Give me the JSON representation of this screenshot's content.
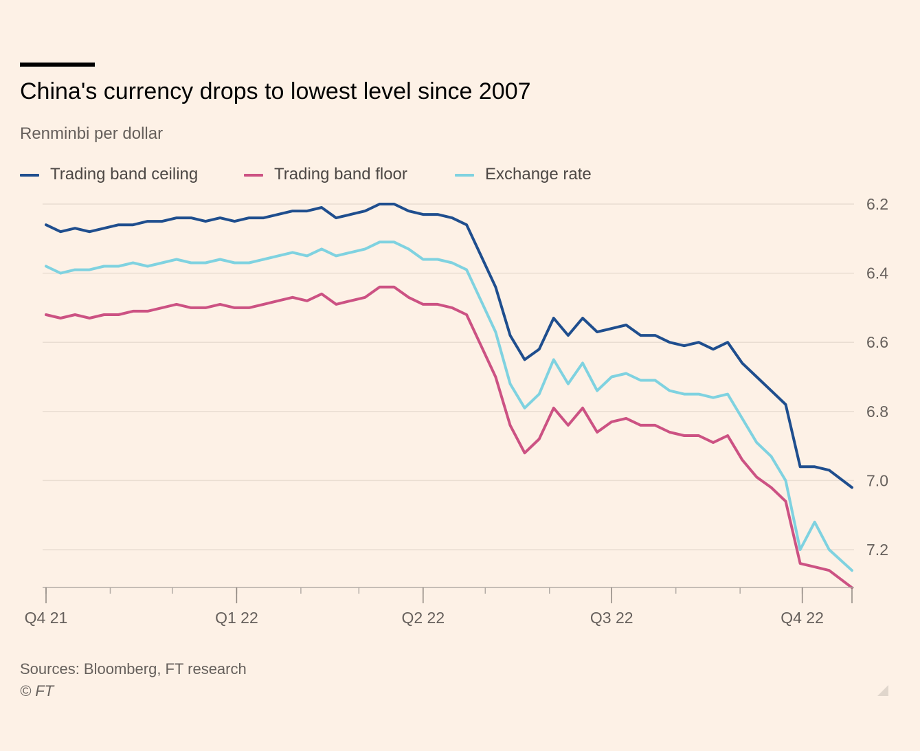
{
  "header": {
    "title": "China's currency drops to lowest level since 2007",
    "subtitle": "Renminbi per dollar"
  },
  "footer": {
    "source": "Sources: Bloomberg, FT research",
    "copyright": "© FT"
  },
  "chart_data": {
    "type": "line",
    "title": "China's currency drops to lowest level since 2007",
    "subtitle": "Renminbi per dollar",
    "xlabel": "",
    "ylabel": "",
    "y_axis_inverted": true,
    "y_axis_position": "right",
    "ylim": [
      6.2,
      7.31
    ],
    "y_ticks": [
      "6.2",
      "6.4",
      "6.6",
      "6.8",
      "7.0",
      "7.2"
    ],
    "xlim": [
      "2021-10-01",
      "2022-10-25"
    ],
    "x_ticks": [
      {
        "label": "Q4 21",
        "date": "2021-10-01"
      },
      {
        "label": "Q1 22",
        "date": "2022-01-01"
      },
      {
        "label": "Q2 22",
        "date": "2022-04-01"
      },
      {
        "label": "Q3 22",
        "date": "2022-07-01"
      },
      {
        "label": "Q4 22",
        "date": "2022-10-01"
      }
    ],
    "grid": true,
    "legend_position": "top-left",
    "series": [
      {
        "name": "Trading band ceiling",
        "color": "#1f4e8e",
        "points": [
          [
            "2021-10-01",
            6.26
          ],
          [
            "2021-10-08",
            6.28
          ],
          [
            "2021-10-15",
            6.27
          ],
          [
            "2021-10-22",
            6.28
          ],
          [
            "2021-10-29",
            6.27
          ],
          [
            "2021-11-05",
            6.26
          ],
          [
            "2021-11-12",
            6.26
          ],
          [
            "2021-11-19",
            6.25
          ],
          [
            "2021-11-26",
            6.25
          ],
          [
            "2021-12-03",
            6.24
          ],
          [
            "2021-12-10",
            6.24
          ],
          [
            "2021-12-17",
            6.25
          ],
          [
            "2021-12-24",
            6.24
          ],
          [
            "2021-12-31",
            6.25
          ],
          [
            "2022-01-07",
            6.24
          ],
          [
            "2022-01-14",
            6.24
          ],
          [
            "2022-01-21",
            6.23
          ],
          [
            "2022-01-28",
            6.22
          ],
          [
            "2022-02-04",
            6.22
          ],
          [
            "2022-02-11",
            6.21
          ],
          [
            "2022-02-18",
            6.24
          ],
          [
            "2022-02-25",
            6.23
          ],
          [
            "2022-03-04",
            6.22
          ],
          [
            "2022-03-11",
            6.2
          ],
          [
            "2022-03-18",
            6.2
          ],
          [
            "2022-03-25",
            6.22
          ],
          [
            "2022-04-01",
            6.23
          ],
          [
            "2022-04-08",
            6.23
          ],
          [
            "2022-04-15",
            6.24
          ],
          [
            "2022-04-22",
            6.26
          ],
          [
            "2022-04-29",
            6.35
          ],
          [
            "2022-05-06",
            6.44
          ],
          [
            "2022-05-13",
            6.58
          ],
          [
            "2022-05-20",
            6.65
          ],
          [
            "2022-05-27",
            6.62
          ],
          [
            "2022-06-03",
            6.53
          ],
          [
            "2022-06-10",
            6.58
          ],
          [
            "2022-06-17",
            6.53
          ],
          [
            "2022-06-24",
            6.57
          ],
          [
            "2022-07-01",
            6.56
          ],
          [
            "2022-07-08",
            6.55
          ],
          [
            "2022-07-15",
            6.58
          ],
          [
            "2022-07-22",
            6.58
          ],
          [
            "2022-07-29",
            6.6
          ],
          [
            "2022-08-05",
            6.61
          ],
          [
            "2022-08-12",
            6.6
          ],
          [
            "2022-08-19",
            6.62
          ],
          [
            "2022-08-26",
            6.6
          ],
          [
            "2022-09-02",
            6.66
          ],
          [
            "2022-09-09",
            6.7
          ],
          [
            "2022-09-16",
            6.74
          ],
          [
            "2022-09-23",
            6.78
          ],
          [
            "2022-09-30",
            6.96
          ],
          [
            "2022-10-07",
            6.96
          ],
          [
            "2022-10-14",
            6.97
          ],
          [
            "2022-10-25",
            7.02
          ]
        ]
      },
      {
        "name": "Trading band floor",
        "color": "#cc5283",
        "points": [
          [
            "2021-10-01",
            6.52
          ],
          [
            "2021-10-08",
            6.53
          ],
          [
            "2021-10-15",
            6.52
          ],
          [
            "2021-10-22",
            6.53
          ],
          [
            "2021-10-29",
            6.52
          ],
          [
            "2021-11-05",
            6.52
          ],
          [
            "2021-11-12",
            6.51
          ],
          [
            "2021-11-19",
            6.51
          ],
          [
            "2021-11-26",
            6.5
          ],
          [
            "2021-12-03",
            6.49
          ],
          [
            "2021-12-10",
            6.5
          ],
          [
            "2021-12-17",
            6.5
          ],
          [
            "2021-12-24",
            6.49
          ],
          [
            "2021-12-31",
            6.5
          ],
          [
            "2022-01-07",
            6.5
          ],
          [
            "2022-01-14",
            6.49
          ],
          [
            "2022-01-21",
            6.48
          ],
          [
            "2022-01-28",
            6.47
          ],
          [
            "2022-02-04",
            6.48
          ],
          [
            "2022-02-11",
            6.46
          ],
          [
            "2022-02-18",
            6.49
          ],
          [
            "2022-02-25",
            6.48
          ],
          [
            "2022-03-04",
            6.47
          ],
          [
            "2022-03-11",
            6.44
          ],
          [
            "2022-03-18",
            6.44
          ],
          [
            "2022-03-25",
            6.47
          ],
          [
            "2022-04-01",
            6.49
          ],
          [
            "2022-04-08",
            6.49
          ],
          [
            "2022-04-15",
            6.5
          ],
          [
            "2022-04-22",
            6.52
          ],
          [
            "2022-04-29",
            6.61
          ],
          [
            "2022-05-06",
            6.7
          ],
          [
            "2022-05-13",
            6.84
          ],
          [
            "2022-05-20",
            6.92
          ],
          [
            "2022-05-27",
            6.88
          ],
          [
            "2022-06-03",
            6.79
          ],
          [
            "2022-06-10",
            6.84
          ],
          [
            "2022-06-17",
            6.79
          ],
          [
            "2022-06-24",
            6.86
          ],
          [
            "2022-07-01",
            6.83
          ],
          [
            "2022-07-08",
            6.82
          ],
          [
            "2022-07-15",
            6.84
          ],
          [
            "2022-07-22",
            6.84
          ],
          [
            "2022-07-29",
            6.86
          ],
          [
            "2022-08-05",
            6.87
          ],
          [
            "2022-08-12",
            6.87
          ],
          [
            "2022-08-19",
            6.89
          ],
          [
            "2022-08-26",
            6.87
          ],
          [
            "2022-09-02",
            6.94
          ],
          [
            "2022-09-09",
            6.99
          ],
          [
            "2022-09-16",
            7.02
          ],
          [
            "2022-09-23",
            7.06
          ],
          [
            "2022-09-30",
            7.24
          ],
          [
            "2022-10-07",
            7.25
          ],
          [
            "2022-10-14",
            7.26
          ],
          [
            "2022-10-25",
            7.31
          ]
        ]
      },
      {
        "name": "Exchange rate",
        "color": "#7fd2e0",
        "points": [
          [
            "2021-10-01",
            6.38
          ],
          [
            "2021-10-08",
            6.4
          ],
          [
            "2021-10-15",
            6.39
          ],
          [
            "2021-10-22",
            6.39
          ],
          [
            "2021-10-29",
            6.38
          ],
          [
            "2021-11-05",
            6.38
          ],
          [
            "2021-11-12",
            6.37
          ],
          [
            "2021-11-19",
            6.38
          ],
          [
            "2021-11-26",
            6.37
          ],
          [
            "2021-12-03",
            6.36
          ],
          [
            "2021-12-10",
            6.37
          ],
          [
            "2021-12-17",
            6.37
          ],
          [
            "2021-12-24",
            6.36
          ],
          [
            "2021-12-31",
            6.37
          ],
          [
            "2022-01-07",
            6.37
          ],
          [
            "2022-01-14",
            6.36
          ],
          [
            "2022-01-21",
            6.35
          ],
          [
            "2022-01-28",
            6.34
          ],
          [
            "2022-02-04",
            6.35
          ],
          [
            "2022-02-11",
            6.33
          ],
          [
            "2022-02-18",
            6.35
          ],
          [
            "2022-02-25",
            6.34
          ],
          [
            "2022-03-04",
            6.33
          ],
          [
            "2022-03-11",
            6.31
          ],
          [
            "2022-03-18",
            6.31
          ],
          [
            "2022-03-25",
            6.33
          ],
          [
            "2022-04-01",
            6.36
          ],
          [
            "2022-04-08",
            6.36
          ],
          [
            "2022-04-15",
            6.37
          ],
          [
            "2022-04-22",
            6.39
          ],
          [
            "2022-04-29",
            6.48
          ],
          [
            "2022-05-06",
            6.57
          ],
          [
            "2022-05-13",
            6.72
          ],
          [
            "2022-05-20",
            6.79
          ],
          [
            "2022-05-27",
            6.75
          ],
          [
            "2022-06-03",
            6.65
          ],
          [
            "2022-06-10",
            6.72
          ],
          [
            "2022-06-17",
            6.66
          ],
          [
            "2022-06-24",
            6.74
          ],
          [
            "2022-07-01",
            6.7
          ],
          [
            "2022-07-08",
            6.69
          ],
          [
            "2022-07-15",
            6.71
          ],
          [
            "2022-07-22",
            6.71
          ],
          [
            "2022-07-29",
            6.74
          ],
          [
            "2022-08-05",
            6.75
          ],
          [
            "2022-08-12",
            6.75
          ],
          [
            "2022-08-19",
            6.76
          ],
          [
            "2022-08-26",
            6.75
          ],
          [
            "2022-09-02",
            6.82
          ],
          [
            "2022-09-09",
            6.89
          ],
          [
            "2022-09-16",
            6.93
          ],
          [
            "2022-09-23",
            7.0
          ],
          [
            "2022-09-30",
            7.2
          ],
          [
            "2022-10-07",
            7.12
          ],
          [
            "2022-10-14",
            7.2
          ],
          [
            "2022-10-25",
            7.26
          ]
        ]
      }
    ]
  }
}
